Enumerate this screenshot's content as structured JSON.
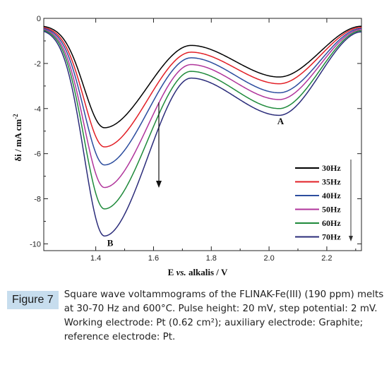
{
  "chart_data": {
    "type": "line",
    "xlabel_e": "E",
    "xlabel_vs": "vs.",
    "xlabel_rest": "alkalis / V",
    "ylabel_base": "δi / mA cm",
    "ylabel_exp": "-2",
    "xlim": [
      1.22,
      2.32
    ],
    "ylim": [
      -10.3,
      0
    ],
    "x_ticks": [
      1.4,
      1.6,
      1.8,
      2.0,
      2.2
    ],
    "x_tick_labels": [
      "1.4",
      "1.6",
      "1.8",
      "2.0",
      "2.2"
    ],
    "y_ticks": [
      0,
      -2,
      -4,
      -6,
      -8,
      -10
    ],
    "y_tick_labels": [
      "0",
      "-2",
      "-4",
      "-6",
      "-8",
      "-10"
    ],
    "grid": false,
    "legend_position": "bottom-right",
    "annotations": [
      {
        "text": "A",
        "x": 2.04,
        "y": -4.7
      },
      {
        "text": "B",
        "x": 1.45,
        "y": -10.1
      }
    ],
    "series": [
      {
        "name": "30Hz",
        "color": "#000000",
        "start": -0.3,
        "peakB": -4.85,
        "mid": -1.2,
        "peakA": -2.6,
        "end": -0.35
      },
      {
        "name": "35Hz",
        "color": "#e21f26",
        "start": -0.34,
        "peakB": -5.7,
        "mid": -1.5,
        "peakA": -2.9,
        "end": -0.4
      },
      {
        "name": "40Hz",
        "color": "#2c4d9e",
        "start": -0.37,
        "peakB": -6.5,
        "mid": -1.75,
        "peakA": -3.3,
        "end": -0.45
      },
      {
        "name": "50Hz",
        "color": "#b0349b",
        "start": -0.4,
        "peakB": -7.5,
        "mid": -2.05,
        "peakA": -3.6,
        "end": -0.5
      },
      {
        "name": "60Hz",
        "color": "#1f8a3b",
        "start": -0.43,
        "peakB": -8.45,
        "mid": -2.35,
        "peakA": -4.0,
        "end": -0.55
      },
      {
        "name": "70Hz",
        "color": "#2b2c7a",
        "start": -0.46,
        "peakB": -9.65,
        "mid": -2.65,
        "peakA": -4.3,
        "end": -0.6
      }
    ]
  },
  "caption": {
    "label": "Figure 7",
    "text": "Square wave voltammograms of the FLINAK-Fe(III) (190 ppm) melts at 30-70 Hz and 600°C. Pulse height: 20 mV, step potential: 2 mV. Working electrode: Pt (0.62 cm²); auxiliary electrode: Graphite; reference electrode: Pt."
  }
}
